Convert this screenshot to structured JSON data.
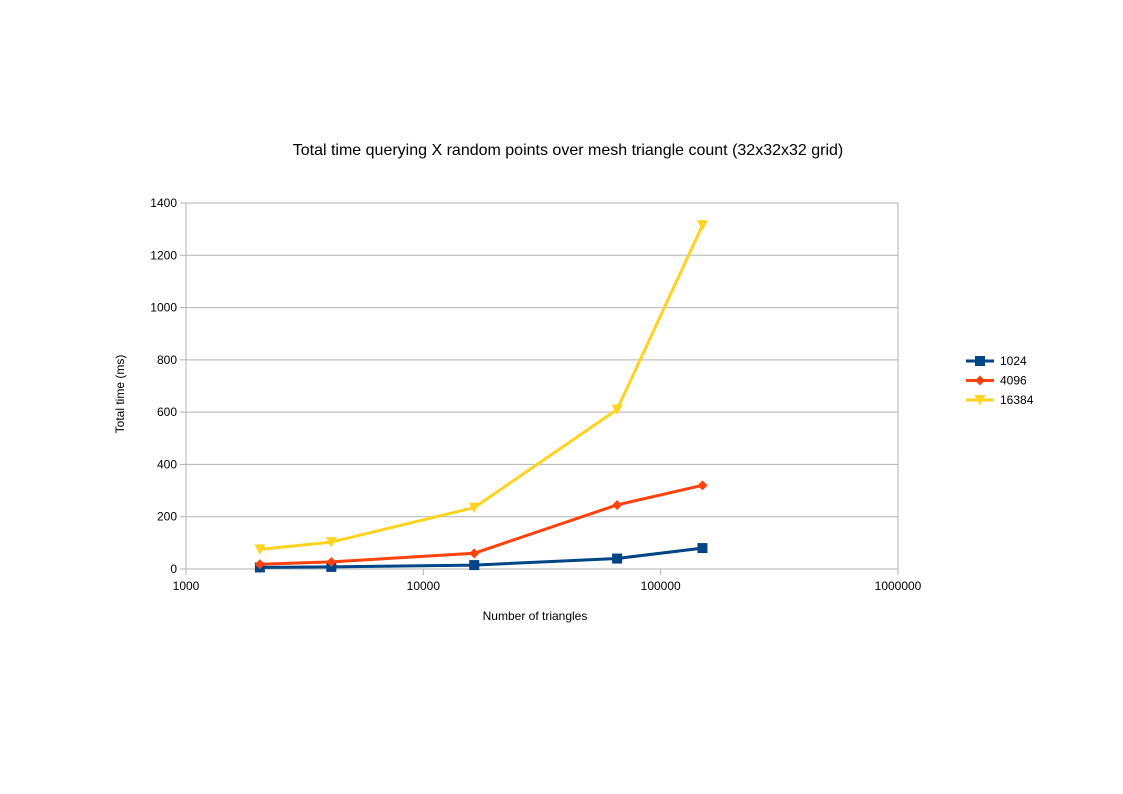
{
  "chart_data": {
    "type": "line",
    "title": "Total time querying X random points over mesh triangle count (32x32x32 grid)",
    "xlabel": "Number of triangles",
    "ylabel": "Total time (ms)",
    "x_scale": "log",
    "xlim": [
      1000,
      1000000
    ],
    "ylim": [
      0,
      1400
    ],
    "x_ticks": [
      1000,
      10000,
      100000,
      1000000
    ],
    "x_tick_labels": [
      "1000",
      "10000",
      "100000",
      "1000000"
    ],
    "y_ticks": [
      0,
      200,
      400,
      600,
      800,
      1000,
      1200,
      1400
    ],
    "y_tick_labels": [
      "0",
      "200",
      "400",
      "600",
      "800",
      "1000",
      "1200",
      "1400"
    ],
    "grid": "horizontal",
    "legend_position": "right",
    "x": [
      2048,
      4096,
      16384,
      65536,
      150000
    ],
    "series": [
      {
        "name": "1024",
        "color": "#004586",
        "marker": "square",
        "values": [
          6,
          8,
          15,
          40,
          80
        ]
      },
      {
        "name": "4096",
        "color": "#ff420e",
        "marker": "diamond",
        "values": [
          18,
          27,
          60,
          245,
          320
        ]
      },
      {
        "name": "16384",
        "color": "#ffd320",
        "marker": "triangle-down",
        "values": [
          75,
          103,
          235,
          610,
          1315
        ]
      }
    ]
  }
}
